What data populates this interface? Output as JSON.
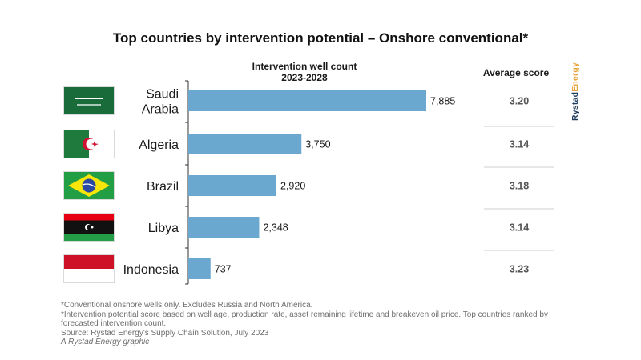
{
  "chart_data": {
    "type": "bar",
    "orientation": "horizontal",
    "title": "Top countries by intervention potential – Onshore conventional*",
    "series_header_line1": "Intervention well count",
    "series_header_line2": "2023-2028",
    "score_header": "Average score",
    "categories": [
      "Saudi Arabia",
      "Algeria",
      "Brazil",
      "Libya",
      "Indonesia"
    ],
    "category_lines": [
      [
        "Saudi",
        "Arabia"
      ],
      [
        "Algeria"
      ],
      [
        "Brazil"
      ],
      [
        "Libya"
      ],
      [
        "Indonesia"
      ]
    ],
    "values": [
      7885,
      3750,
      2920,
      2348,
      737
    ],
    "value_labels": [
      "7,885",
      "3,750",
      "2,920",
      "2,348",
      "737"
    ],
    "scores": [
      "3.20",
      "3.14",
      "3.18",
      "3.14",
      "3.23"
    ],
    "bar_color": "#6aa8d0",
    "grid": false,
    "legend": "none"
  },
  "brand": {
    "part1": "Rystad",
    "part2": "Energy"
  },
  "colors": {
    "text": "#1a1a1a",
    "axis": "#333333",
    "divider": "#cfcfcf",
    "footnote": "#6e6e6e",
    "brand_dark": "#1f3b5c",
    "brand_accent": "#e8a33a"
  },
  "flags": [
    "saudi-arabia-flag",
    "algeria-flag",
    "brazil-flag",
    "libya-flag",
    "indonesia-flag"
  ],
  "footnotes": [
    "*Conventional onshore wells only. Excludes Russia and North America.",
    "*Intervention potential score based on well age, production rate, asset remaining lifetime and breakeven oil price. Top countries ranked by forecasted intervention count.",
    "Source: Rystad Energy's Supply Chain Solution, July 2023",
    "A Rystad Energy graphic"
  ]
}
